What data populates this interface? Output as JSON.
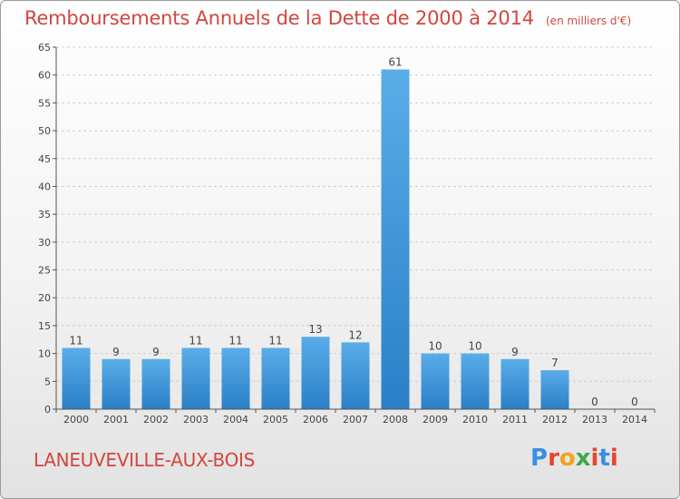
{
  "header": {
    "title": "Remboursements Annuels de la Dette de 2000 à 2014",
    "unit": "(en milliers d'€)"
  },
  "footer": {
    "commune": "LANEUVEVILLE-AUX-BOIS",
    "logo_text": "Proxiti",
    "logo_colors": [
      "#3a8ee6",
      "#e8452c",
      "#f2a31b",
      "#41a84a",
      "#e8452c",
      "#3a8ee6",
      "#e8452c"
    ]
  },
  "colors": {
    "bar_light": "#5aade8",
    "bar_dark": "#2a7fc7",
    "title_red": "#d2463e",
    "grid": "#cfcfcf",
    "axis": "#555555"
  },
  "chart_data": {
    "type": "bar",
    "title": "Remboursements Annuels de la Dette de 2000 à 2014",
    "subtitle": "(en milliers d'€)",
    "xlabel": "",
    "ylabel": "",
    "categories": [
      "2000",
      "2001",
      "2002",
      "2003",
      "2004",
      "2005",
      "2006",
      "2007",
      "2008",
      "2009",
      "2010",
      "2011",
      "2012",
      "2013",
      "2014"
    ],
    "values": [
      11,
      9,
      9,
      11,
      11,
      11,
      13,
      12,
      61,
      10,
      10,
      9,
      7,
      0,
      0
    ],
    "ylim": [
      0,
      65
    ],
    "yticks": [
      0,
      5,
      10,
      15,
      20,
      25,
      30,
      35,
      40,
      45,
      50,
      55,
      60,
      65
    ],
    "grid": true,
    "data_labels": true
  }
}
